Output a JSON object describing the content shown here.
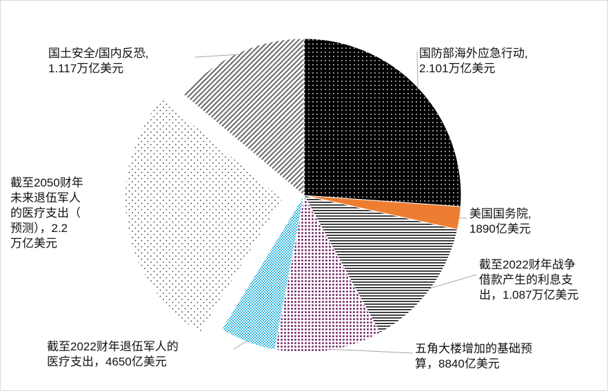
{
  "chart_data": {
    "type": "pie",
    "unit": "亿美元",
    "slices": [
      {
        "key": "overseas",
        "label": [
          "国防部海外应急行动,",
          "2.101万亿美元"
        ],
        "value": 21010,
        "fill": "dots-black"
      },
      {
        "key": "state",
        "label": [
          "美国国务院,",
          "1890亿美元"
        ],
        "value": 1890,
        "fill": "#ED7D31"
      },
      {
        "key": "interest",
        "label": [
          "截至2022财年战争",
          "借款产生的利息支",
          "出，1.087万亿美元"
        ],
        "value": 10870,
        "fill": "horizontal-lines"
      },
      {
        "key": "pentagon",
        "label": [
          "五角大楼增加的基础预",
          "算，8840亿美元"
        ],
        "value": 8840,
        "fill": "purple-dots"
      },
      {
        "key": "vet2022",
        "label": [
          "截至2022财年退伍军人的",
          "医疗支出，4650亿美元"
        ],
        "value": 4650,
        "fill": "cyan-checker"
      },
      {
        "key": "vet2050",
        "label": [
          "截至2050财年",
          "未来退伍军人",
          "的医疗支出（",
          "预测），2.2",
          "万亿美元"
        ],
        "value": 22000,
        "fill": "sparse-dots",
        "exploded": true
      },
      {
        "key": "homeland",
        "label": [
          "国土安全/国内反恐,",
          "1.117万亿美元"
        ],
        "value": 11170,
        "fill": "diagonal-lines"
      }
    ],
    "legend": "none"
  }
}
